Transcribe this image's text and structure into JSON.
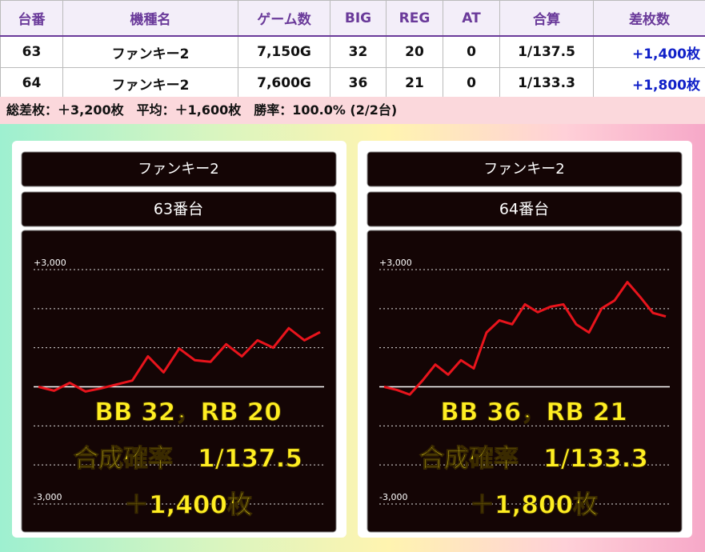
{
  "table": {
    "header": [
      "台番",
      "機種名",
      "ゲーム数",
      "BIG",
      "REG",
      "AT",
      "合算",
      "差枚数"
    ],
    "rows": [
      [
        "63",
        "ファンキー2",
        "7,150G",
        "32",
        "20",
        "0",
        "1/137.5",
        "+1,400枚"
      ],
      [
        "64",
        "ファンキー2",
        "7,600G",
        "36",
        "21",
        "0",
        "1/133.3",
        "+1,800枚"
      ]
    ]
  },
  "summary": "総差枚：＋3,200枚　平均：＋1,600枚　勝率：100.0% (2/2台)",
  "chart_data": [
    {
      "type": "line",
      "title": "ファンキー2",
      "subtitle": "63番台",
      "color": "#e8141c",
      "values": [
        0,
        -100,
        100,
        -120,
        -40,
        60,
        160,
        780,
        370,
        980,
        680,
        640,
        1090,
        780,
        1190,
        1000,
        1500,
        1190,
        1400
      ],
      "ylim": [
        -3000,
        3000
      ],
      "yticks": [
        {
          "value": 3000,
          "label": "+3,000"
        },
        {
          "value": -3000,
          "label": "-3,000"
        }
      ],
      "grid_values": [
        2000,
        1000,
        0,
        -1000,
        -2000
      ],
      "annotations": [
        "BB 32，RB 20",
        "合成確率　1/137.5",
        "＋1,400枚"
      ]
    },
    {
      "type": "line",
      "title": "ファンキー2",
      "subtitle": "64番台",
      "color": "#e8141c",
      "values": [
        0,
        -80,
        -200,
        160,
        570,
        310,
        680,
        470,
        1390,
        1700,
        1600,
        2110,
        1910,
        2050,
        2110,
        1600,
        1390,
        2010,
        2210,
        2680,
        2300,
        1890,
        1800
      ],
      "ylim": [
        -3000,
        3000
      ],
      "yticks": [
        {
          "value": 3000,
          "label": "+3,000"
        },
        {
          "value": -3000,
          "label": "-3,000"
        }
      ],
      "grid_values": [
        2000,
        1000,
        0,
        -1000,
        -2000
      ],
      "annotations": [
        "BB 36，RB 21",
        "合成確率　1/133.3",
        "＋1,800枚"
      ]
    }
  ]
}
